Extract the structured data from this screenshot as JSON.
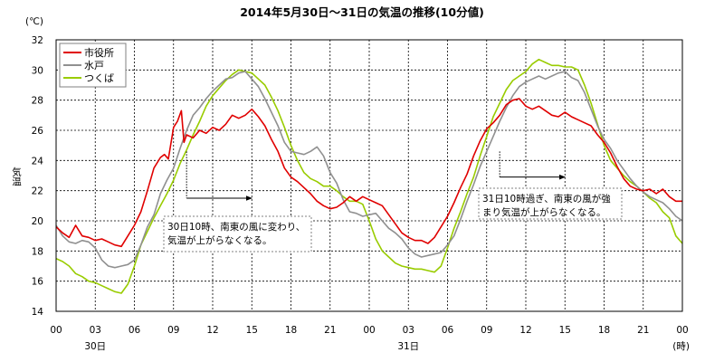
{
  "chart_data": {
    "type": "line",
    "title": "2014年5月30日～31日の気温の推移(10分値)",
    "y_unit": "(℃)",
    "ylabel": "気温",
    "x_unit": "(時)",
    "ylim": [
      14,
      32
    ],
    "y_ticks": [
      "14",
      "16",
      "18",
      "20",
      "22",
      "24",
      "26",
      "28",
      "30",
      "32"
    ],
    "x_ticks": [
      "00",
      "03",
      "06",
      "09",
      "12",
      "15",
      "18",
      "21",
      "00",
      "03",
      "06",
      "09",
      "12",
      "15",
      "18",
      "21",
      "00"
    ],
    "day_labels": [
      {
        "label": "30日",
        "at_hour": 3
      },
      {
        "label": "31日",
        "at_hour": 27
      }
    ],
    "xlim_hours": [
      0,
      48
    ],
    "grid": true,
    "legend_position": "top-left",
    "series": [
      {
        "name": "市役所",
        "color": "#e00000",
        "points": [
          [
            0,
            19.6
          ],
          [
            0.5,
            19.2
          ],
          [
            1,
            18.9
          ],
          [
            1.5,
            19.7
          ],
          [
            2,
            19.0
          ],
          [
            2.5,
            18.9
          ],
          [
            3,
            18.7
          ],
          [
            3.5,
            18.8
          ],
          [
            4,
            18.6
          ],
          [
            4.5,
            18.4
          ],
          [
            5,
            18.3
          ],
          [
            5.5,
            19.0
          ],
          [
            6,
            19.7
          ],
          [
            6.5,
            20.6
          ],
          [
            7,
            22.0
          ],
          [
            7.5,
            23.5
          ],
          [
            8,
            24.2
          ],
          [
            8.3,
            24.4
          ],
          [
            8.6,
            24.1
          ],
          [
            9,
            26.2
          ],
          [
            9.3,
            26.6
          ],
          [
            9.6,
            27.3
          ],
          [
            9.8,
            25.2
          ],
          [
            10,
            25.7
          ],
          [
            10.5,
            25.5
          ],
          [
            11,
            26.0
          ],
          [
            11.5,
            25.8
          ],
          [
            12,
            26.2
          ],
          [
            12.5,
            26.0
          ],
          [
            13,
            26.4
          ],
          [
            13.5,
            27.0
          ],
          [
            14,
            26.8
          ],
          [
            14.5,
            27.0
          ],
          [
            15,
            27.4
          ],
          [
            15.5,
            26.9
          ],
          [
            16,
            26.3
          ],
          [
            16.5,
            25.4
          ],
          [
            17,
            24.6
          ],
          [
            17.5,
            23.5
          ],
          [
            18,
            22.9
          ],
          [
            18.5,
            22.6
          ],
          [
            19,
            22.2
          ],
          [
            19.5,
            21.8
          ],
          [
            20,
            21.3
          ],
          [
            20.5,
            21.0
          ],
          [
            21,
            20.8
          ],
          [
            21.5,
            20.9
          ],
          [
            22,
            21.2
          ],
          [
            22.5,
            21.6
          ],
          [
            23,
            21.3
          ],
          [
            23.5,
            21.6
          ],
          [
            24,
            21.4
          ],
          [
            24.5,
            21.2
          ],
          [
            25,
            21.0
          ],
          [
            25.5,
            20.4
          ],
          [
            26,
            19.8
          ],
          [
            26.5,
            19.2
          ],
          [
            27,
            18.9
          ],
          [
            27.5,
            18.7
          ],
          [
            28,
            18.7
          ],
          [
            28.5,
            18.5
          ],
          [
            29,
            18.9
          ],
          [
            29.5,
            19.6
          ],
          [
            30,
            20.3
          ],
          [
            30.5,
            21.2
          ],
          [
            31,
            22.2
          ],
          [
            31.5,
            23.1
          ],
          [
            32,
            24.3
          ],
          [
            32.5,
            25.3
          ],
          [
            33,
            26.1
          ],
          [
            33.5,
            26.5
          ],
          [
            34,
            27.0
          ],
          [
            34.5,
            27.7
          ],
          [
            35,
            28.0
          ],
          [
            35.5,
            28.1
          ],
          [
            36,
            27.6
          ],
          [
            36.5,
            27.4
          ],
          [
            37,
            27.6
          ],
          [
            37.5,
            27.3
          ],
          [
            38,
            27.0
          ],
          [
            38.5,
            26.9
          ],
          [
            39,
            27.2
          ],
          [
            39.5,
            26.9
          ],
          [
            40,
            26.7
          ],
          [
            40.5,
            26.5
          ],
          [
            41,
            26.3
          ],
          [
            41.5,
            25.7
          ],
          [
            42,
            25.2
          ],
          [
            42.5,
            24.5
          ],
          [
            43,
            23.6
          ],
          [
            43.5,
            22.8
          ],
          [
            44,
            22.3
          ],
          [
            44.5,
            22.1
          ],
          [
            45,
            22.0
          ],
          [
            45.5,
            22.1
          ],
          [
            46,
            21.8
          ],
          [
            46.5,
            22.1
          ],
          [
            47,
            21.6
          ],
          [
            47.5,
            21.3
          ],
          [
            48,
            21.3
          ]
        ]
      },
      {
        "name": "水戸",
        "color": "#909090",
        "points": [
          [
            0,
            19.7
          ],
          [
            0.5,
            19.0
          ],
          [
            1,
            18.6
          ],
          [
            1.5,
            18.5
          ],
          [
            2,
            18.7
          ],
          [
            2.5,
            18.6
          ],
          [
            3,
            18.2
          ],
          [
            3.5,
            17.4
          ],
          [
            4,
            17.0
          ],
          [
            4.5,
            16.9
          ],
          [
            5,
            17.0
          ],
          [
            5.5,
            17.1
          ],
          [
            6,
            17.4
          ],
          [
            6.5,
            18.4
          ],
          [
            7,
            19.6
          ],
          [
            7.5,
            20.4
          ],
          [
            8,
            21.8
          ],
          [
            8.5,
            22.7
          ],
          [
            9,
            23.5
          ],
          [
            9.5,
            24.8
          ],
          [
            10,
            26.0
          ],
          [
            10.5,
            27.0
          ],
          [
            11,
            27.5
          ],
          [
            11.5,
            28.1
          ],
          [
            12,
            28.6
          ],
          [
            12.5,
            29.0
          ],
          [
            13,
            29.4
          ],
          [
            13.5,
            29.5
          ],
          [
            14,
            29.8
          ],
          [
            14.5,
            29.9
          ],
          [
            15,
            29.4
          ],
          [
            15.5,
            28.9
          ],
          [
            16,
            28.1
          ],
          [
            16.5,
            27.2
          ],
          [
            17,
            26.3
          ],
          [
            17.5,
            25.2
          ],
          [
            18,
            24.6
          ],
          [
            18.5,
            24.5
          ],
          [
            19,
            24.4
          ],
          [
            19.5,
            24.6
          ],
          [
            20,
            24.9
          ],
          [
            20.5,
            24.3
          ],
          [
            21,
            23.2
          ],
          [
            21.5,
            22.5
          ],
          [
            22,
            21.4
          ],
          [
            22.5,
            20.6
          ],
          [
            23,
            20.5
          ],
          [
            23.5,
            20.3
          ],
          [
            24,
            20.4
          ],
          [
            24.5,
            20.5
          ],
          [
            25,
            20.0
          ],
          [
            25.5,
            19.5
          ],
          [
            26,
            19.2
          ],
          [
            26.5,
            18.8
          ],
          [
            27,
            18.2
          ],
          [
            27.5,
            17.8
          ],
          [
            28,
            17.6
          ],
          [
            28.5,
            17.7
          ],
          [
            29,
            17.8
          ],
          [
            29.5,
            17.9
          ],
          [
            30,
            18.4
          ],
          [
            30.5,
            19.0
          ],
          [
            31,
            20.1
          ],
          [
            31.5,
            21.3
          ],
          [
            32,
            22.4
          ],
          [
            32.5,
            23.6
          ],
          [
            33,
            24.6
          ],
          [
            33.5,
            25.6
          ],
          [
            34,
            26.6
          ],
          [
            34.5,
            27.5
          ],
          [
            35,
            28.3
          ],
          [
            35.5,
            28.9
          ],
          [
            36,
            29.2
          ],
          [
            36.5,
            29.4
          ],
          [
            37,
            29.6
          ],
          [
            37.5,
            29.4
          ],
          [
            38,
            29.6
          ],
          [
            38.5,
            29.8
          ],
          [
            39,
            29.9
          ],
          [
            39.5,
            29.5
          ],
          [
            40,
            29.3
          ],
          [
            40.5,
            28.5
          ],
          [
            41,
            27.4
          ],
          [
            41.5,
            26.3
          ],
          [
            42,
            25.4
          ],
          [
            42.5,
            24.8
          ],
          [
            43,
            24.0
          ],
          [
            43.5,
            23.4
          ],
          [
            44,
            22.8
          ],
          [
            44.5,
            22.3
          ],
          [
            45,
            21.9
          ],
          [
            45.5,
            21.6
          ],
          [
            46,
            21.4
          ],
          [
            46.5,
            21.2
          ],
          [
            47,
            20.8
          ],
          [
            47.5,
            20.3
          ],
          [
            48,
            20.0
          ]
        ]
      },
      {
        "name": "つくば",
        "color": "#99cc00",
        "points": [
          [
            0,
            17.5
          ],
          [
            0.5,
            17.3
          ],
          [
            1,
            17.0
          ],
          [
            1.5,
            16.5
          ],
          [
            2,
            16.3
          ],
          [
            2.5,
            16.0
          ],
          [
            3,
            15.9
          ],
          [
            3.5,
            15.7
          ],
          [
            4,
            15.5
          ],
          [
            4.5,
            15.3
          ],
          [
            5,
            15.2
          ],
          [
            5.5,
            15.8
          ],
          [
            6,
            17.0
          ],
          [
            6.5,
            18.4
          ],
          [
            7,
            19.3
          ],
          [
            7.5,
            20.2
          ],
          [
            8,
            21.0
          ],
          [
            8.5,
            21.8
          ],
          [
            9,
            22.7
          ],
          [
            9.5,
            23.8
          ],
          [
            10,
            24.7
          ],
          [
            10.5,
            25.7
          ],
          [
            11,
            26.6
          ],
          [
            11.5,
            27.6
          ],
          [
            12,
            28.3
          ],
          [
            12.5,
            28.8
          ],
          [
            13,
            29.3
          ],
          [
            13.5,
            29.7
          ],
          [
            14,
            30.0
          ],
          [
            14.5,
            29.9
          ],
          [
            15,
            29.8
          ],
          [
            15.5,
            29.4
          ],
          [
            16,
            29.0
          ],
          [
            16.5,
            28.2
          ],
          [
            17,
            27.3
          ],
          [
            17.5,
            26.2
          ],
          [
            18,
            25.0
          ],
          [
            18.5,
            24.0
          ],
          [
            19,
            23.2
          ],
          [
            19.5,
            22.8
          ],
          [
            20,
            22.6
          ],
          [
            20.5,
            22.3
          ],
          [
            21,
            22.3
          ],
          [
            21.5,
            22.0
          ],
          [
            22,
            21.6
          ],
          [
            22.5,
            21.3
          ],
          [
            23,
            21.3
          ],
          [
            23.5,
            21.1
          ],
          [
            24,
            20.0
          ],
          [
            24.5,
            18.8
          ],
          [
            25,
            18.0
          ],
          [
            25.5,
            17.6
          ],
          [
            26,
            17.2
          ],
          [
            26.5,
            17.0
          ],
          [
            27,
            16.9
          ],
          [
            27.5,
            16.8
          ],
          [
            28,
            16.8
          ],
          [
            28.5,
            16.7
          ],
          [
            29,
            16.6
          ],
          [
            29.5,
            17.0
          ],
          [
            30,
            18.2
          ],
          [
            30.5,
            19.5
          ],
          [
            31,
            20.6
          ],
          [
            31.5,
            21.8
          ],
          [
            32,
            22.9
          ],
          [
            32.5,
            24.3
          ],
          [
            33,
            25.6
          ],
          [
            33.5,
            26.9
          ],
          [
            34,
            27.8
          ],
          [
            34.5,
            28.7
          ],
          [
            35,
            29.3
          ],
          [
            35.5,
            29.6
          ],
          [
            36,
            29.9
          ],
          [
            36.5,
            30.4
          ],
          [
            37,
            30.7
          ],
          [
            37.5,
            30.5
          ],
          [
            38,
            30.3
          ],
          [
            38.5,
            30.3
          ],
          [
            39,
            30.2
          ],
          [
            39.5,
            30.2
          ],
          [
            40,
            30.0
          ],
          [
            40.5,
            29.0
          ],
          [
            41,
            27.8
          ],
          [
            41.5,
            26.4
          ],
          [
            42,
            25.0
          ],
          [
            42.5,
            24.0
          ],
          [
            43,
            23.5
          ],
          [
            43.5,
            23.0
          ],
          [
            44,
            22.6
          ],
          [
            44.5,
            22.3
          ],
          [
            45,
            21.9
          ],
          [
            45.5,
            21.5
          ],
          [
            46,
            21.2
          ],
          [
            46.5,
            20.6
          ],
          [
            47,
            20.2
          ],
          [
            47.5,
            19.0
          ],
          [
            48,
            18.5
          ]
        ]
      }
    ],
    "annotations": [
      {
        "lines": [
          "30日10時、南東の風に変わり、",
          "気温が上がらなくなる。"
        ],
        "marker_hour": 10,
        "arrow_y_value": 21.5,
        "arrow_to_hour": 15
      },
      {
        "lines": [
          "31日10時過ぎ、南東の風が強",
          "まり気温が上がらなくなる。"
        ],
        "marker_hour": 34,
        "arrow_y_value": 22.9,
        "arrow_to_hour": 39
      }
    ]
  }
}
